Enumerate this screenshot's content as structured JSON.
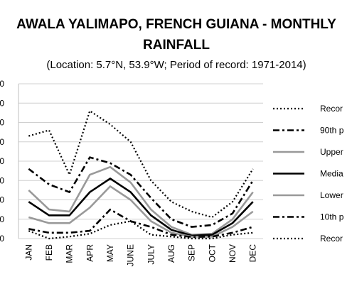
{
  "chart_data": {
    "type": "line",
    "title_line1": "AWALA YALIMAPO, FRENCH GUIANA - MONTHLY",
    "title_line2": "RAINFALL",
    "subtitle": "(Location: 5.7°N, 53.9°W; Period of record: 1971-2014)",
    "categories": [
      "JAN",
      "FEB",
      "MAR",
      "APR",
      "MAY",
      "JUNE",
      "JULY",
      "AUG",
      "SEP",
      "OCT",
      "NOV",
      "DEC"
    ],
    "ylim": [
      0,
      800
    ],
    "grid": "horizontal",
    "legend_position": "right",
    "series": [
      {
        "name": "Recor",
        "style": "dotted",
        "color": "#000000",
        "values": [
          530,
          560,
          330,
          660,
          590,
          500,
          300,
          190,
          140,
          110,
          190,
          360
        ]
      },
      {
        "name": "90th p",
        "style": "dashdot",
        "color": "#000000",
        "values": [
          360,
          280,
          240,
          420,
          390,
          330,
          210,
          100,
          60,
          70,
          130,
          300
        ]
      },
      {
        "name": "Upper",
        "style": "solid",
        "color": "#999999",
        "values": [
          250,
          150,
          140,
          330,
          370,
          290,
          150,
          60,
          20,
          25,
          100,
          240
        ]
      },
      {
        "name": "Media",
        "style": "solid",
        "color": "#000000",
        "values": [
          190,
          120,
          120,
          240,
          310,
          240,
          120,
          45,
          15,
          20,
          80,
          190
        ]
      },
      {
        "name": "Lower",
        "style": "solid",
        "color": "#999999",
        "values": [
          110,
          80,
          80,
          160,
          270,
          200,
          90,
          30,
          10,
          10,
          60,
          140
        ]
      },
      {
        "name": "10th p",
        "style": "dashdot",
        "color": "#000000",
        "values": [
          50,
          30,
          30,
          40,
          150,
          90,
          60,
          20,
          8,
          10,
          30,
          60
        ]
      },
      {
        "name": "Recor",
        "style": "dotted",
        "color": "#000000",
        "values": [
          40,
          0,
          10,
          25,
          70,
          90,
          20,
          10,
          0,
          0,
          20,
          30
        ]
      }
    ]
  }
}
